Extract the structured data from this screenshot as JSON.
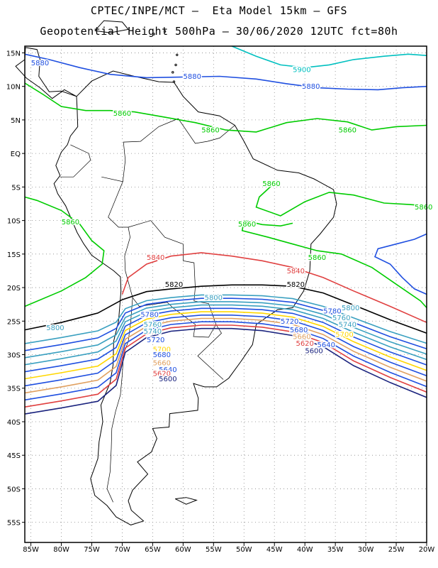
{
  "header": {
    "line1": "CPTEC/INPE/MCT –  Eta Model 15km – GFS",
    "line2": "Geopotential Height 500hPa – 30/06/2020 12UTC fct=80h"
  },
  "chart_data": {
    "type": "contour_map",
    "variable": "Geopotential Height 500hPa",
    "model": "Eta Model 15km – GFS",
    "run": "30/06/2020 12UTC",
    "forecast": "fct=80h",
    "lon_range": [
      -86,
      -20
    ],
    "lat_range": [
      -58,
      16
    ],
    "grid": true,
    "x_ticks": [
      "85W",
      "80W",
      "75W",
      "70W",
      "65W",
      "60W",
      "55W",
      "50W",
      "45W",
      "40W",
      "35W",
      "30W",
      "25W",
      "20W"
    ],
    "y_ticks": [
      "15N",
      "10N",
      "5N",
      "EQ",
      "5S",
      "10S",
      "15S",
      "20S",
      "25S",
      "30S",
      "35S",
      "40S",
      "45S",
      "50S",
      "55S"
    ],
    "contours": [
      {
        "value": "5900",
        "color": "#00c0c0",
        "labels": [
          [
            -40.5,
            12.5
          ]
        ]
      },
      {
        "value": "5880",
        "color": "#1f4fe0",
        "labels": [
          [
            -83.5,
            13.5
          ],
          [
            -58.5,
            11.5
          ],
          [
            -39,
            10.0
          ]
        ]
      },
      {
        "value": "5860",
        "color": "#00cc00",
        "labels": [
          [
            -70,
            6.0
          ],
          [
            -55.5,
            3.5
          ],
          [
            -33,
            3.5
          ],
          [
            -45.5,
            -4.5
          ],
          [
            -49.5,
            -10.5
          ],
          [
            -78.5,
            -10.2
          ],
          [
            -38,
            -15.5
          ],
          [
            -20.5,
            -8.0
          ]
        ]
      },
      {
        "value": "5840",
        "color": "#e04040",
        "labels": [
          [
            -64.5,
            -15.5
          ],
          [
            -41.5,
            -17.5
          ]
        ]
      },
      {
        "value": "5820",
        "color": "#000000",
        "labels": [
          [
            -61.5,
            -19.5
          ],
          [
            -41.5,
            -19.5
          ]
        ]
      },
      {
        "value": "5800",
        "color": "#3aa0c0",
        "labels": [
          [
            -81,
            -26.0
          ],
          [
            -55,
            -21.5
          ],
          [
            -32.5,
            -23.0
          ]
        ]
      },
      {
        "value": "5780",
        "color": "#1f4fe0",
        "labels": [
          [
            -65.5,
            -24.0
          ],
          [
            -35.5,
            -23.5
          ]
        ]
      },
      {
        "value": "5760",
        "color": "#3aa0c0",
        "labels": [
          [
            -65,
            -25.5
          ],
          [
            -34,
            -24.5
          ]
        ]
      },
      {
        "value": "5740",
        "color": "#3aa0c0",
        "labels": [
          [
            -65,
            -26.5
          ],
          [
            -33,
            -25.5
          ]
        ]
      },
      {
        "value": "5720",
        "color": "#1f4fe0",
        "labels": [
          [
            -64.5,
            -27.8
          ],
          [
            -42.5,
            -25.0
          ]
        ]
      },
      {
        "value": "5700",
        "color": "#ffd700",
        "labels": [
          [
            -63.5,
            -29.2
          ],
          [
            -33.5,
            -27.0
          ]
        ]
      },
      {
        "value": "5680",
        "color": "#1f4fe0",
        "labels": [
          [
            -63.5,
            -30.0
          ],
          [
            -41,
            -26.3
          ]
        ]
      },
      {
        "value": "5660",
        "color": "#e0a060",
        "labels": [
          [
            -63.5,
            -31.2
          ],
          [
            -40.5,
            -27.3
          ]
        ]
      },
      {
        "value": "5640",
        "color": "#1f4fe0",
        "labels": [
          [
            -62.5,
            -32.2
          ],
          [
            -36.5,
            -28.5
          ]
        ]
      },
      {
        "value": "5620",
        "color": "#e04040",
        "labels": [
          [
            -63.5,
            -32.8
          ],
          [
            -40,
            -28.3
          ]
        ]
      },
      {
        "value": "5600",
        "color": "#1a237e",
        "labels": [
          [
            -62.5,
            -33.6
          ],
          [
            -38.5,
            -29.4
          ]
        ]
      }
    ]
  }
}
